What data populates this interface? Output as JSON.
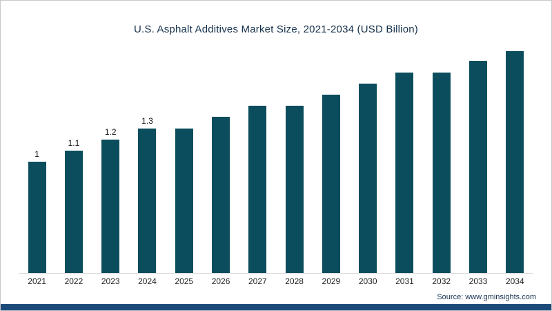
{
  "page": {
    "title": "U.S. Asphalt Additives Market Size, 2021-2034 (USD Billion)"
  },
  "chart_data": {
    "type": "bar",
    "title": "U.S. Asphalt Additives Market Size, 2021-2034 (USD Billion)",
    "categories": [
      "2021",
      "2022",
      "2023",
      "2024",
      "2025",
      "2026",
      "2027",
      "2028",
      "2029",
      "2030",
      "2031",
      "2032",
      "2033",
      "2034"
    ],
    "values": [
      1,
      1.1,
      1.2,
      1.3,
      1.3,
      1.4,
      1.5,
      1.5,
      1.6,
      1.7,
      1.8,
      1.8,
      1.9,
      2.0
    ],
    "point_labels": [
      "1",
      "1.1",
      "1.2",
      "1.3",
      "",
      "",
      "",
      "",
      "",
      "",
      "",
      "",
      "",
      ""
    ],
    "xlabel": "",
    "ylabel": "",
    "ylim": [
      0,
      2.1
    ],
    "grid": false,
    "legend": false,
    "y_axis_visible": false,
    "bar_color": "#0b4d5c"
  },
  "footer": {
    "source_label": "Source: www.gminsights.com",
    "strip_color": "#1b4a7a"
  }
}
